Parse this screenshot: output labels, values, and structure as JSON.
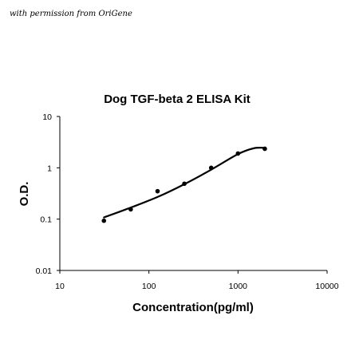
{
  "watermark": "with permission from OriGene",
  "chart_data": {
    "type": "scatter",
    "title": "Dog TGF-beta 2 ELISA Kit",
    "xlabel": "Concentration(pg/ml)",
    "ylabel": "O.D.",
    "x_scale": "log",
    "y_scale": "log",
    "xlim": [
      10,
      10000
    ],
    "ylim": [
      0.01,
      10
    ],
    "x_ticks": [
      10,
      100,
      1000,
      10000
    ],
    "y_ticks": [
      0.01,
      0.1,
      1,
      10
    ],
    "x_tick_labels": [
      "10",
      "100",
      "1000",
      "10000"
    ],
    "y_tick_labels": [
      "0.01",
      "0.1",
      "1",
      "10"
    ],
    "grid": false,
    "series": [
      {
        "x": [
          31.25,
          62.5,
          125,
          250,
          500,
          1000,
          2000
        ],
        "y": [
          0.093,
          0.155,
          0.35,
          0.49,
          1.0,
          1.9,
          2.35
        ]
      }
    ],
    "fit_curve": {
      "x": [
        31.25,
        62.5,
        125,
        250,
        500,
        1000,
        1500,
        2000
      ],
      "y": [
        0.108,
        0.168,
        0.27,
        0.48,
        0.92,
        1.85,
        2.4,
        2.45
      ]
    },
    "colors": {
      "marker": "#000000",
      "line": "#000000",
      "axis": "#000000"
    }
  }
}
